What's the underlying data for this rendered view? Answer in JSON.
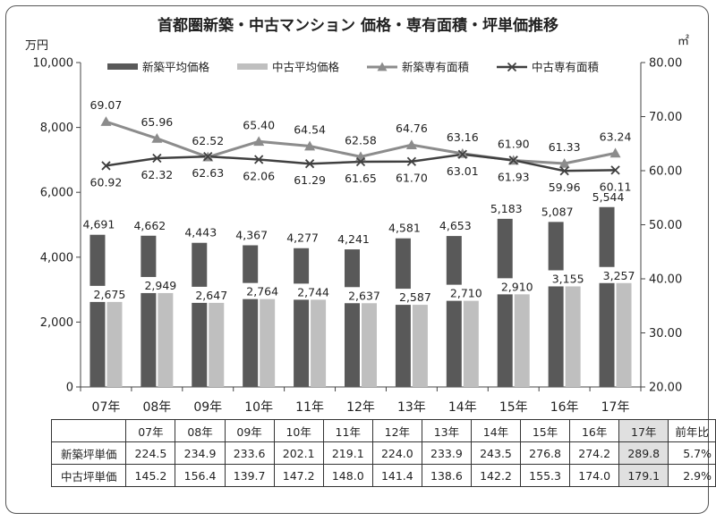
{
  "chart_data": {
    "type": "bar",
    "title": "首都圏新築・中古マンション 価格・専有面積・坪単価推移",
    "ylabel_left": "万円",
    "ylabel_right": "㎡",
    "categories": [
      "07年",
      "08年",
      "09年",
      "10年",
      "11年",
      "12年",
      "13年",
      "14年",
      "15年",
      "16年",
      "17年"
    ],
    "ylim_left": [
      0,
      10000
    ],
    "ylim_right": [
      20,
      80
    ],
    "yticks_left": [
      "0",
      "2,000",
      "4,000",
      "6,000",
      "8,000",
      "10,000"
    ],
    "yticks_left_values": [
      0,
      2000,
      4000,
      6000,
      8000,
      10000
    ],
    "yticks_right": [
      "20.00",
      "30.00",
      "40.00",
      "50.00",
      "60.00",
      "70.00",
      "80.00"
    ],
    "yticks_right_values": [
      20,
      30,
      40,
      50,
      60,
      70,
      80
    ],
    "grid": false,
    "legend_position": "top",
    "series": [
      {
        "name": "新築平均価格",
        "kind": "bar",
        "axis": "left",
        "color": "#595959",
        "values": [
          4691,
          4662,
          4443,
          4367,
          4277,
          4241,
          4581,
          4653,
          5183,
          5087,
          5544
        ],
        "labels": [
          "4,691",
          "4,662",
          "4,443",
          "4,367",
          "4,277",
          "4,241",
          "4,581",
          "4,653",
          "5,183",
          "5,087",
          "5,544"
        ]
      },
      {
        "name": "中古平均価格",
        "kind": "bar",
        "axis": "left",
        "color": "#bfbfbf",
        "values": [
          2675,
          2949,
          2647,
          2764,
          2744,
          2637,
          2587,
          2710,
          2910,
          3155,
          3257
        ],
        "labels": [
          "2,675",
          "2,949",
          "2,647",
          "2,764",
          "2,744",
          "2,637",
          "2,587",
          "2,710",
          "2,910",
          "3,155",
          "3,257"
        ]
      },
      {
        "name": "新築専有面積",
        "kind": "line",
        "marker": "triangle",
        "axis": "right",
        "color": "#8c8c8c",
        "values": [
          69.07,
          65.96,
          62.52,
          65.4,
          64.54,
          62.58,
          64.76,
          63.16,
          61.9,
          61.33,
          63.24
        ],
        "labels": [
          "69.07",
          "65.96",
          "62.52",
          "65.40",
          "64.54",
          "62.58",
          "64.76",
          "63.16",
          "61.90",
          "61.33",
          "63.24"
        ]
      },
      {
        "name": "中古専有面積",
        "kind": "line",
        "marker": "x",
        "axis": "right",
        "color": "#404040",
        "values": [
          60.92,
          62.32,
          62.63,
          62.06,
          61.29,
          61.65,
          61.7,
          63.01,
          61.93,
          59.96,
          60.11
        ],
        "labels": [
          "60.92",
          "62.32",
          "62.63",
          "62.06",
          "61.29",
          "61.65",
          "61.70",
          "63.01",
          "61.93",
          "59.96",
          "60.11"
        ]
      }
    ]
  },
  "table": {
    "headers": [
      "07年",
      "08年",
      "09年",
      "10年",
      "11年",
      "12年",
      "13年",
      "14年",
      "15年",
      "16年",
      "17年"
    ],
    "ratio_header": "前年比",
    "rows": [
      {
        "label": "新築坪単価",
        "values": [
          "224.5",
          "234.9",
          "233.6",
          "202.1",
          "219.1",
          "224.0",
          "233.9",
          "243.5",
          "276.8",
          "274.2",
          "289.8"
        ],
        "ratio": "5.7%"
      },
      {
        "label": "中古坪単価",
        "values": [
          "145.2",
          "156.4",
          "139.7",
          "147.2",
          "148.0",
          "141.4",
          "138.6",
          "142.2",
          "155.3",
          "174.0",
          "179.1"
        ],
        "ratio": "2.9%"
      }
    ]
  }
}
